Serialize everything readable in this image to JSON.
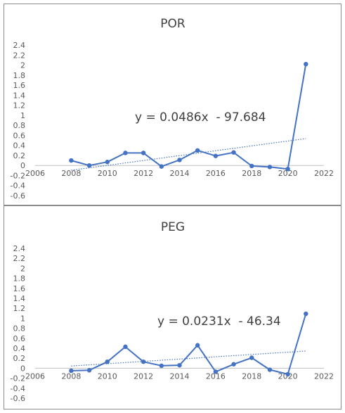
{
  "chart_data": [
    {
      "type": "line",
      "title": "POR",
      "x": [
        2008,
        2009,
        2010,
        2011,
        2012,
        2013,
        2014,
        2015,
        2016,
        2017,
        2018,
        2019,
        2020,
        2021
      ],
      "series": [
        {
          "name": "",
          "values": [
            0.1,
            0.0,
            0.07,
            0.25,
            0.25,
            -0.02,
            0.11,
            0.3,
            0.19,
            0.26,
            -0.01,
            -0.03,
            -0.07,
            2.02
          ],
          "color": "#4472c4"
        }
      ],
      "trendline": {
        "type": "linear",
        "slope": 0.0486,
        "intercept": -97.684,
        "label": "y = 0.0486x  - 97.684",
        "color": "#4472c4",
        "style": "dotted"
      },
      "xlim": [
        2006,
        2022
      ],
      "ylim": [
        -0.6,
        2.4
      ],
      "x_ticks": [
        "2006",
        "2008",
        "2010",
        "2012",
        "2014",
        "2016",
        "2018",
        "2020",
        "2022"
      ],
      "y_ticks": [
        "2.4",
        "2.2",
        "2",
        "1.8",
        "1.6",
        "1.4",
        "1.2",
        "1",
        "0.8",
        "0.6",
        "0.4",
        "0.2",
        "0",
        "-0.2",
        "-0.4",
        "-0.6"
      ],
      "grid": false,
      "legend": "none"
    },
    {
      "type": "line",
      "title": "PEG",
      "x": [
        2008,
        2009,
        2010,
        2011,
        2012,
        2013,
        2014,
        2015,
        2016,
        2017,
        2018,
        2019,
        2020,
        2021
      ],
      "series": [
        {
          "name": "",
          "values": [
            -0.05,
            -0.04,
            0.13,
            0.43,
            0.13,
            0.05,
            0.06,
            0.46,
            -0.07,
            0.08,
            0.21,
            -0.03,
            -0.12,
            1.09
          ],
          "color": "#4472c4"
        }
      ],
      "trendline": {
        "type": "linear",
        "slope": 0.0231,
        "intercept": -46.34,
        "label": "y = 0.0231x  - 46.34",
        "color": "#4472c4",
        "style": "dotted"
      },
      "xlim": [
        2006,
        2022
      ],
      "ylim": [
        -0.6,
        2.4
      ],
      "x_ticks": [
        "2006",
        "2008",
        "2010",
        "2012",
        "2014",
        "2016",
        "2018",
        "2020",
        "2022"
      ],
      "y_ticks": [
        "2.4",
        "2.2",
        "2",
        "1.8",
        "1.6",
        "1.4",
        "1.2",
        "1",
        "0.8",
        "0.6",
        "0.4",
        "0.2",
        "0",
        "-0.2",
        "-0.4",
        "-0.6"
      ],
      "grid": false,
      "legend": "none"
    }
  ]
}
